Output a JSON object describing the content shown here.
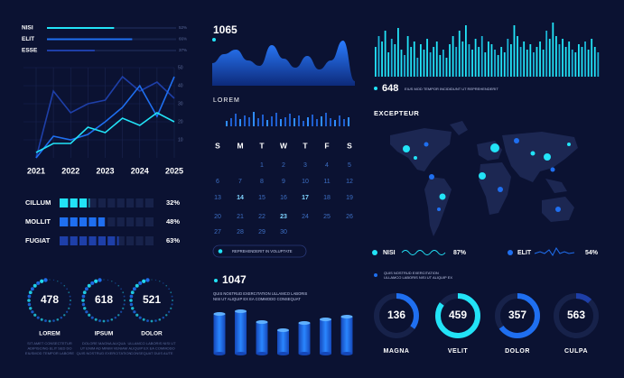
{
  "top_bars": {
    "labels": [
      "NISI",
      "ELIT",
      "ESSE"
    ],
    "values": [
      52,
      66,
      37
    ],
    "value_labels": [
      "52%",
      "66%",
      "37%"
    ],
    "colors": [
      "#22e3f7",
      "#1f6ff0",
      "#1e3fa8"
    ]
  },
  "line_chart": {
    "x": [
      2021,
      2021.5,
      2022,
      2022.5,
      2023,
      2023.5,
      2024,
      2024.5,
      2025
    ],
    "xlim": [
      2021,
      2025
    ],
    "xticks": [
      2021,
      2022,
      2023,
      2024,
      2025
    ],
    "ylim": [
      0,
      50
    ],
    "yticks": [
      10,
      20,
      30,
      40,
      50
    ],
    "series": [
      {
        "color": "#1e3fa8",
        "values": [
          0,
          37,
          25,
          30,
          32,
          45,
          37,
          42,
          33
        ]
      },
      {
        "color": "#1f6ff0",
        "values": [
          0,
          12,
          10,
          13,
          20,
          28,
          40,
          23,
          45
        ]
      },
      {
        "color": "#22e3f7",
        "values": [
          3,
          8,
          8,
          17,
          14,
          22,
          18,
          25,
          20
        ]
      }
    ]
  },
  "segment_bars": {
    "labels": [
      "CILLUM",
      "MOLLIT",
      "FUGIAT"
    ],
    "values": [
      32,
      48,
      63
    ],
    "value_labels": [
      "32%",
      "48%",
      "63%"
    ],
    "colors": [
      "#22e3f7",
      "#1f6ff0",
      "#1e3fa8"
    ]
  },
  "gauges": [
    {
      "value": 478,
      "label": "LOREM",
      "caption": [
        "SIT AMET CONSECTETUR",
        "ADIPISCING ELIT SED DO",
        "EIUSMOD TEMPOR LABORE"
      ]
    },
    {
      "value": 618,
      "label": "IPSUM",
      "caption": [
        "DOLORE MAGNA ALIQUA",
        "UT ENIM AD MINIM VENIAM",
        "QUIS NOSTRUD EXERCITATION"
      ]
    },
    {
      "value": 521,
      "label": "DOLOR",
      "caption": [
        "ULLAMCO LABORIS NISI UT",
        "ALIQUIP EX EA COMMODO",
        "CONSEQUAT DUIS AUTE"
      ]
    }
  ],
  "area_chart": {
    "title": "1065",
    "values": [
      25,
      35,
      40,
      28,
      22,
      45,
      30,
      20,
      33,
      18,
      28,
      50,
      5
    ],
    "ylim": [
      0,
      60
    ]
  },
  "mini_bars": {
    "title": "LOREM",
    "values": [
      6,
      9,
      14,
      8,
      12,
      10,
      16,
      9,
      13,
      7,
      11,
      15,
      8,
      10,
      14,
      9,
      12,
      6,
      10,
      13,
      8,
      11,
      15,
      9,
      7,
      12,
      8,
      10
    ],
    "ylim": [
      0,
      20
    ]
  },
  "calendar": {
    "weekdays": [
      "S",
      "M",
      "T",
      "W",
      "T",
      "F",
      "S"
    ],
    "weeks": [
      [
        null,
        null,
        1,
        2,
        3,
        4,
        5
      ],
      [
        6,
        7,
        8,
        9,
        10,
        11,
        12
      ],
      [
        13,
        14,
        15,
        16,
        17,
        18,
        19
      ],
      [
        20,
        21,
        22,
        23,
        24,
        25,
        26
      ],
      [
        27,
        28,
        29,
        30,
        null,
        null,
        null
      ]
    ],
    "highlighted": [
      14,
      17,
      23
    ],
    "button": "REPREHENDERIT IN VOLUPTATE"
  },
  "bar_3d": {
    "title": "1047",
    "text": [
      "QUIS NOSTRUD EXERCITATION ULLAMCO LABORIS",
      "NISI UT ALIQUIP EX EA COMMODO CONSEQUAT"
    ],
    "values": [
      44,
      47,
      35,
      26,
      34,
      38,
      41
    ],
    "ylim": [
      0,
      60
    ]
  },
  "barcode": {
    "title": "648",
    "subtitle": "EIUS MOD TEMPOR INCIDIDUNT UT REPREHENDERIT",
    "values": [
      22,
      30,
      26,
      34,
      18,
      28,
      24,
      36,
      20,
      16,
      30,
      22,
      26,
      14,
      24,
      20,
      28,
      18,
      22,
      26,
      16,
      20,
      14,
      24,
      30,
      22,
      34,
      26,
      38,
      24,
      20,
      28,
      22,
      30,
      18,
      26,
      24,
      20,
      16,
      22,
      18,
      28,
      24,
      38,
      30,
      22,
      26,
      20,
      24,
      18,
      22,
      26,
      20,
      34,
      28,
      40,
      30,
      24,
      28,
      22,
      26,
      20,
      18,
      24,
      22,
      26,
      20,
      28,
      22,
      18
    ],
    "ylim": [
      0,
      40
    ]
  },
  "map": {
    "title": "EXCEPTEUR"
  },
  "legend": [
    {
      "name": "NISI",
      "value": "87%",
      "color": "#22e3f7"
    },
    {
      "name": "ELIT",
      "value": "54%",
      "color": "#1f6ff0"
    }
  ],
  "note": [
    "QUIS NOSTRUD EXERCITATION",
    "ULLAMCO LABORIS NISI UT ALIQUIP EX"
  ],
  "donuts": {
    "labels": [
      "MAGNA",
      "VELIT",
      "DOLOR",
      "CULPA"
    ],
    "values": [
      136,
      459,
      357,
      563
    ],
    "progress": [
      35,
      85,
      65,
      12
    ],
    "colors": [
      "#1f6ff0",
      "#22e3f7",
      "#1f6ff0",
      "#1e3fa8"
    ]
  }
}
